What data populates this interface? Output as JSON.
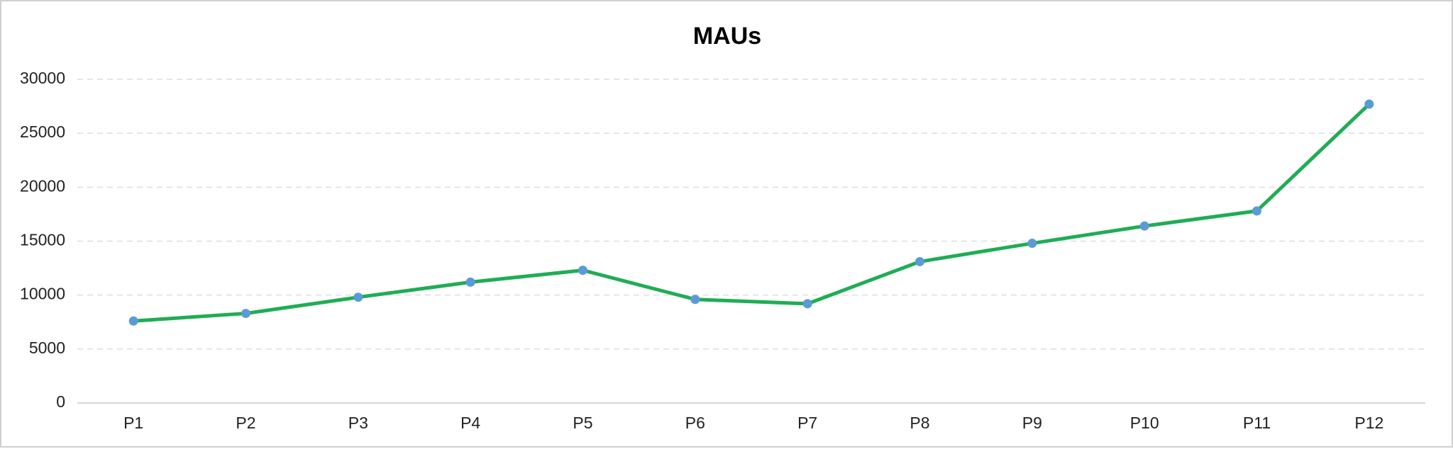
{
  "chart_data": {
    "type": "line",
    "title": "MAUs",
    "categories": [
      "P1",
      "P2",
      "P3",
      "P4",
      "P5",
      "P6",
      "P7",
      "P8",
      "P9",
      "P10",
      "P11",
      "P12"
    ],
    "values": [
      7600,
      8300,
      9800,
      11200,
      12300,
      9600,
      9200,
      13100,
      14800,
      16400,
      17800,
      27700
    ],
    "color": "#1fad55",
    "marker_color": "#5b9bd5",
    "ylim": [
      0,
      30000
    ],
    "yticks": [
      0,
      5000,
      10000,
      15000,
      20000,
      25000,
      30000
    ],
    "grid": true
  }
}
